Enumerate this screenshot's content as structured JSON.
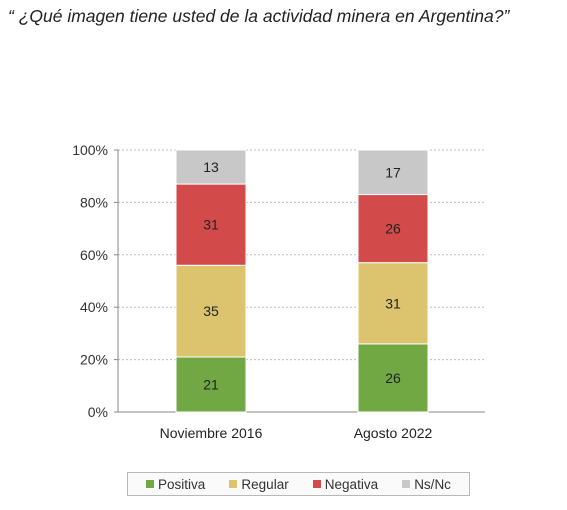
{
  "title": "“ ¿Qué imagen tiene usted de la actividad minera en Argentina?”",
  "chart_data": {
    "type": "bar",
    "stacked": true,
    "title": "“ ¿Qué imagen tiene usted de la actividad minera en Argentina?”",
    "categories": [
      "Noviembre 2016",
      "Agosto 2022"
    ],
    "series": [
      {
        "name": "Positiva",
        "values": [
          21,
          26
        ],
        "color": "#72a844"
      },
      {
        "name": "Regular",
        "values": [
          35,
          31
        ],
        "color": "#dcc46e"
      },
      {
        "name": "Negativa",
        "values": [
          31,
          26
        ],
        "color": "#d24a4a"
      },
      {
        "name": "Ns/Nc",
        "values": [
          13,
          17
        ],
        "color": "#c8c8c8"
      }
    ],
    "yticks": [
      "0%",
      "20%",
      "40%",
      "60%",
      "80%",
      "100%"
    ],
    "ylim": [
      0,
      100
    ],
    "grid": true,
    "legend_position": "bottom",
    "xlabel": "",
    "ylabel": ""
  }
}
